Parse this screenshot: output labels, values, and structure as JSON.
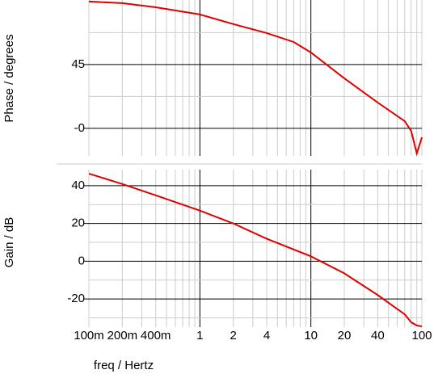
{
  "chart_data": [
    {
      "type": "line",
      "ylabel": "Phase / degrees",
      "x": [
        0.1,
        0.2,
        0.4,
        1,
        2,
        4,
        7,
        10,
        20,
        40,
        70,
        80,
        90,
        100
      ],
      "series": [
        {
          "color": "#e00000",
          "values": [
            89.4,
            88.3,
            85.4,
            80.3,
            73.5,
            67.2,
            60.9,
            53.5,
            35.3,
            18.2,
            5.1,
            -1.7,
            -17.7,
            -6.3
          ]
        }
      ],
      "xlim": [
        0.1,
        100
      ],
      "xscale": "log",
      "ylim": [
        -19.4,
        90.5
      ],
      "yticks": [
        {
          "value": 0,
          "label": "-0"
        },
        45
      ],
      "yminorticks": [
        22.5,
        67.5
      ],
      "grid": true
    },
    {
      "type": "line",
      "ylabel": "Gain / dB",
      "xlabel": "freq / Hertz",
      "x": [
        0.1,
        0.2,
        0.4,
        1,
        2,
        4,
        10,
        20,
        40,
        70,
        80,
        90,
        100
      ],
      "series": [
        {
          "color": "#e00000",
          "values": [
            46.4,
            40.9,
            34.9,
            26.8,
            20,
            11.9,
            2.6,
            -6.4,
            -17.9,
            -28.1,
            -32.3,
            -34,
            -34.5
          ]
        }
      ],
      "xlim": [
        0.1,
        100
      ],
      "xscale": "log",
      "xticks": [
        {
          "value": 0.1,
          "label": "100m"
        },
        {
          "value": 0.2,
          "label": "200m"
        },
        {
          "value": 0.4,
          "label": "400m"
        },
        1,
        2,
        4,
        10,
        20,
        40,
        100
      ],
      "ylim": [
        -34.9,
        48.5
      ],
      "yticks": [
        -20,
        0,
        20,
        40
      ],
      "yminorticks": [
        -30,
        -10,
        10,
        30
      ],
      "grid": true
    }
  ]
}
